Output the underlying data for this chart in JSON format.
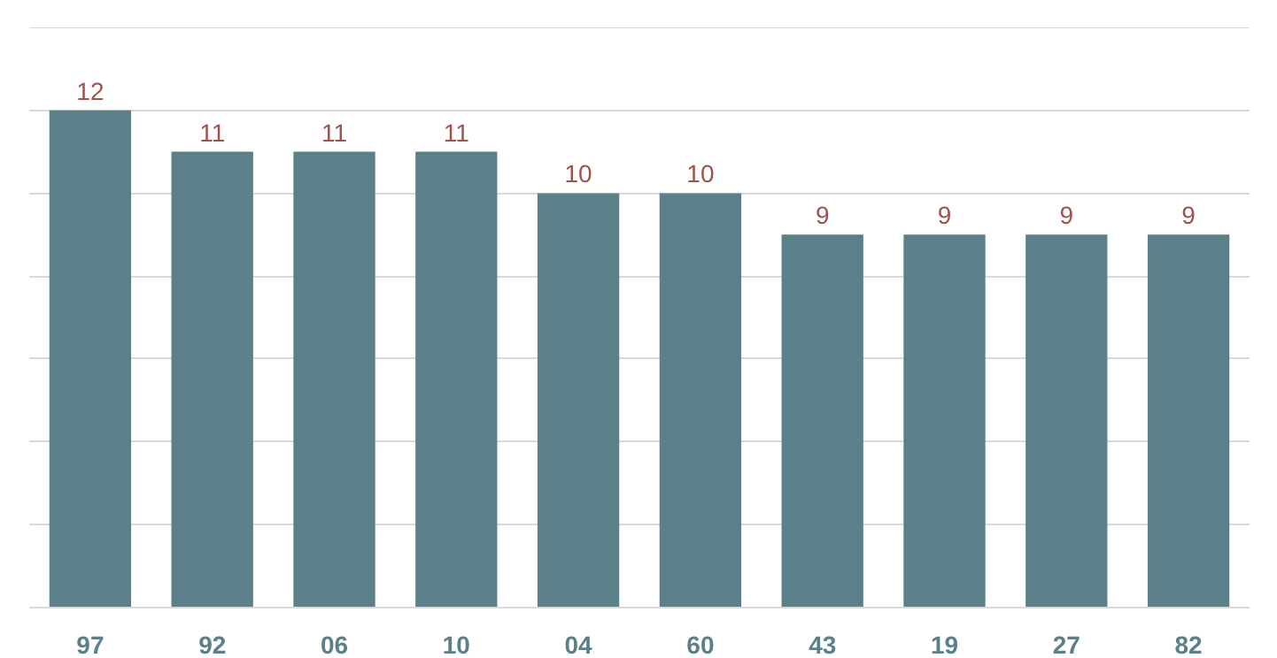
{
  "chart_data": {
    "type": "bar",
    "categories": [
      "97",
      "92",
      "06",
      "10",
      "04",
      "60",
      "43",
      "19",
      "27",
      "82"
    ],
    "values": [
      12,
      11,
      11,
      11,
      10,
      10,
      9,
      9,
      9,
      9
    ],
    "color": "#5a808a",
    "data_labels": true,
    "ylim": [
      0,
      14
    ],
    "yticks": [
      {
        "value": 0,
        "label": null
      },
      {
        "value": 2,
        "label": null
      },
      {
        "value": 4,
        "label": null
      },
      {
        "value": 6,
        "label": null
      },
      {
        "value": 8,
        "label": null
      },
      {
        "value": 10,
        "label": null
      },
      {
        "value": 12,
        "label": null
      }
    ],
    "grid": "y",
    "tick_labels": "x"
  }
}
